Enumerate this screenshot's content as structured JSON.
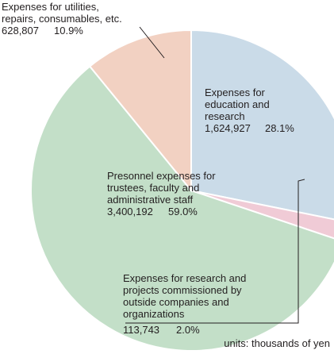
{
  "chart_data": {
    "type": "pie",
    "unit_note": "units: thousands of yen",
    "slices": [
      {
        "key": "education",
        "label_lines": [
          "Expenses for",
          "education and",
          "research"
        ],
        "value": 1624927,
        "value_text": "1,624,927",
        "percent": 28.1,
        "percent_text": "28.1%",
        "color": "#cadbe8"
      },
      {
        "key": "commissioned",
        "label_lines": [
          "Expenses for research and",
          "projects commissioned by",
          "outside companies and",
          "organizations"
        ],
        "value": 113743,
        "value_text": "113,743",
        "percent": 2.0,
        "percent_text": "2.0%",
        "color": "#f0cbd6"
      },
      {
        "key": "personnel",
        "label_lines": [
          "Presonnel expenses for",
          "trustees, faculty and",
          "administrative staff"
        ],
        "value": 3400192,
        "value_text": "3,400,192",
        "percent": 59.0,
        "percent_text": "59.0%",
        "color": "#c3dfc8"
      },
      {
        "key": "utilities",
        "label_lines": [
          "Expenses for utilities,",
          "repairs, consumables, etc."
        ],
        "value": 628807,
        "value_text": "628,807",
        "percent": 10.9,
        "percent_text": "10.9%",
        "color": "#f2d1c2"
      }
    ]
  }
}
